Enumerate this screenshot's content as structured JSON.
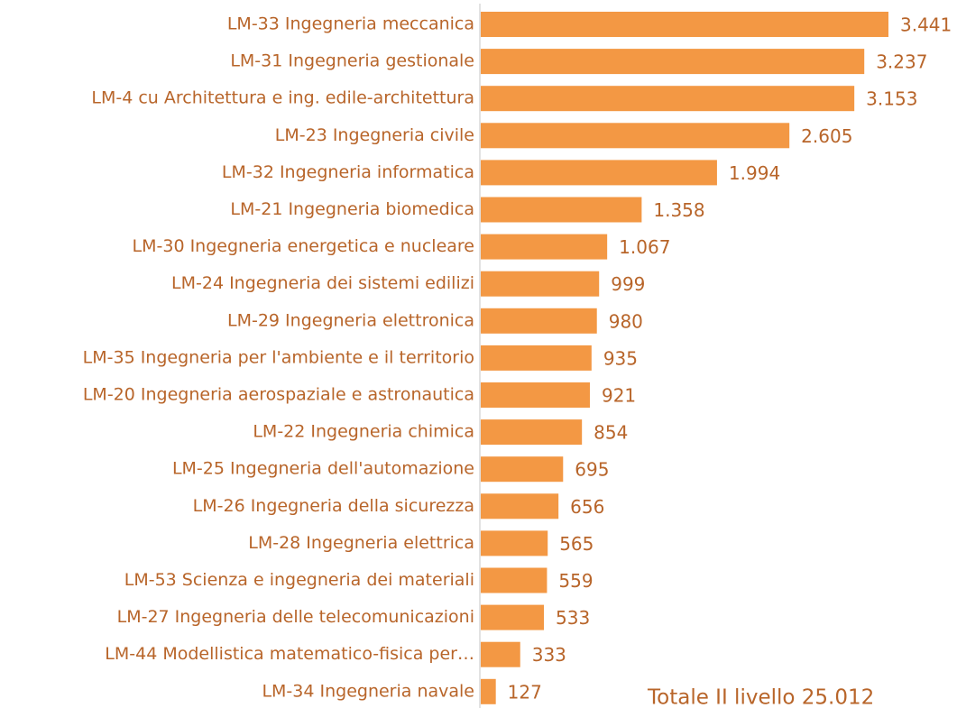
{
  "chart_data": {
    "type": "barh",
    "categories": [
      "LM-33 Ingegneria meccanica",
      "LM-31 Ingegneria gestionale",
      "LM-4 cu Architettura e ing. edile-architettura",
      "LM-23 Ingegneria civile",
      "LM-32 Ingegneria informatica",
      "LM-21 Ingegneria biomedica",
      "LM-30 Ingegneria energetica e nucleare",
      "LM-24 Ingegneria dei sistemi edilizi",
      "LM-29 Ingegneria elettronica",
      "LM-35 Ingegneria per l'ambiente e il territorio",
      "LM-20 Ingegneria aerospaziale e astronautica",
      "LM-22 Ingegneria chimica",
      "LM-25 Ingegneria dell'automazione",
      "LM-26 Ingegneria della sicurezza",
      "LM-28 Ingegneria elettrica",
      "LM-53 Scienza e ingegneria dei materiali",
      "LM-27 Ingegneria delle telecomunicazioni",
      "LM-44 Modellistica matematico-fisica per…",
      "LM-34 Ingegneria navale"
    ],
    "values": [
      3441,
      3237,
      3153,
      2605,
      1994,
      1358,
      1067,
      999,
      980,
      935,
      921,
      854,
      695,
      656,
      565,
      559,
      533,
      333,
      127
    ],
    "value_labels": [
      "3.441",
      "3.237",
      "3.153",
      "2.605",
      "1.994",
      "1.358",
      "1.067",
      "999",
      "980",
      "935",
      "921",
      "854",
      "695",
      "656",
      "565",
      "559",
      "533",
      "333",
      "127"
    ],
    "color": "#f39844",
    "xlim": [
      0,
      3441
    ],
    "annotation": "Totale II livello 25.012"
  }
}
